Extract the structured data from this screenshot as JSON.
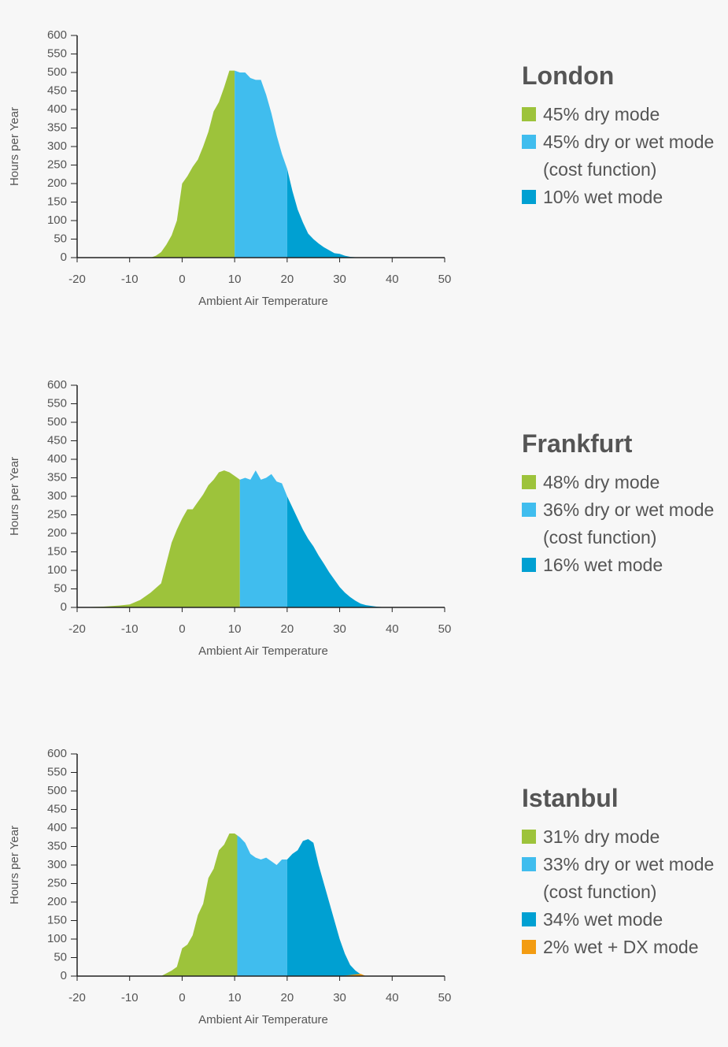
{
  "chart_data": [
    {
      "type": "area",
      "title": "London",
      "xlabel": "Ambient Air Temperature",
      "ylabel": "Hours per Year",
      "xlim": [
        -20,
        50
      ],
      "ylim": [
        0,
        600
      ],
      "xticks": [
        -20,
        -10,
        0,
        10,
        20,
        30,
        40,
        50
      ],
      "yticks": [
        0,
        50,
        100,
        150,
        200,
        250,
        300,
        350,
        400,
        450,
        500,
        550,
        600
      ],
      "series": [
        {
          "name": "45% dry mode",
          "color": "#9dc33b",
          "x": [
            -6,
            -5,
            -4,
            -3,
            -2,
            -1,
            0,
            1,
            2,
            3,
            4,
            5,
            6,
            7,
            8,
            9,
            10
          ],
          "values": [
            0,
            5,
            15,
            35,
            60,
            100,
            200,
            220,
            245,
            265,
            300,
            340,
            395,
            420,
            460,
            505,
            505
          ]
        },
        {
          "name": "45% dry or wet mode (cost function)",
          "color": "#40bdee",
          "x": [
            10,
            11,
            12,
            13,
            14,
            15,
            16,
            17,
            18,
            19,
            20
          ],
          "values": [
            505,
            500,
            500,
            485,
            480,
            480,
            440,
            390,
            330,
            280,
            240
          ]
        },
        {
          "name": "10% wet mode",
          "color": "#00a0d2",
          "x": [
            20,
            21,
            22,
            23,
            24,
            25,
            26,
            27,
            28,
            29,
            30,
            31,
            32,
            34
          ],
          "values": [
            240,
            180,
            130,
            95,
            65,
            50,
            38,
            28,
            20,
            12,
            10,
            5,
            2,
            0
          ]
        }
      ]
    },
    {
      "type": "area",
      "title": "Frankfurt",
      "xlabel": "Ambient Air Temperature",
      "ylabel": "Hours per Year",
      "xlim": [
        -20,
        50
      ],
      "ylim": [
        0,
        600
      ],
      "xticks": [
        -20,
        -10,
        0,
        10,
        20,
        30,
        40,
        50
      ],
      "yticks": [
        0,
        50,
        100,
        150,
        200,
        250,
        300,
        350,
        400,
        450,
        500,
        550,
        600
      ],
      "series": [
        {
          "name": "48% dry mode",
          "color": "#9dc33b",
          "x": [
            -20,
            -15,
            -12,
            -10,
            -8,
            -6,
            -4,
            -3,
            -2,
            -1,
            0,
            1,
            2,
            3,
            4,
            5,
            6,
            7,
            8,
            9,
            10,
            11
          ],
          "values": [
            0,
            2,
            5,
            8,
            20,
            40,
            65,
            120,
            175,
            210,
            240,
            265,
            265,
            285,
            305,
            330,
            345,
            365,
            370,
            365,
            355,
            345
          ]
        },
        {
          "name": "36% dry or wet mode (cost function)",
          "color": "#40bdee",
          "x": [
            11,
            12,
            13,
            14,
            15,
            16,
            17,
            18,
            19,
            20
          ],
          "values": [
            345,
            350,
            345,
            370,
            345,
            350,
            360,
            340,
            335,
            300
          ]
        },
        {
          "name": "16% wet mode",
          "color": "#00a0d2",
          "x": [
            20,
            21,
            22,
            23,
            24,
            25,
            26,
            27,
            28,
            29,
            30,
            31,
            32,
            33,
            34,
            35,
            37,
            39
          ],
          "values": [
            300,
            270,
            240,
            210,
            185,
            165,
            140,
            118,
            95,
            75,
            55,
            40,
            28,
            18,
            10,
            6,
            2,
            0
          ]
        }
      ]
    },
    {
      "type": "area",
      "title": "Istanbul",
      "xlabel": "Ambient Air Temperature",
      "ylabel": "Hours per Year",
      "xlim": [
        -20,
        50
      ],
      "ylim": [
        0,
        600
      ],
      "xticks": [
        -20,
        -10,
        0,
        10,
        20,
        30,
        40,
        50
      ],
      "yticks": [
        0,
        50,
        100,
        150,
        200,
        250,
        300,
        350,
        400,
        450,
        500,
        550,
        600
      ],
      "series": [
        {
          "name": "31% dry mode",
          "color": "#9dc33b",
          "x": [
            -4,
            -2,
            -1,
            0,
            1,
            2,
            3,
            4,
            5,
            6,
            7,
            8,
            9,
            10,
            10.5
          ],
          "values": [
            0,
            15,
            25,
            75,
            85,
            110,
            165,
            195,
            265,
            290,
            340,
            355,
            385,
            385,
            380
          ]
        },
        {
          "name": "33% dry or wet mode (cost function)",
          "color": "#40bdee",
          "x": [
            10.5,
            11,
            12,
            13,
            14,
            15,
            16,
            17,
            18,
            19,
            20
          ],
          "values": [
            380,
            375,
            360,
            330,
            320,
            315,
            320,
            310,
            300,
            315,
            315
          ]
        },
        {
          "name": "34% wet mode",
          "color": "#00a0d2",
          "x": [
            20,
            21,
            22,
            23,
            24,
            25,
            26,
            27,
            28,
            29,
            30,
            31,
            32,
            33,
            34,
            35
          ],
          "values": [
            315,
            330,
            340,
            365,
            370,
            360,
            300,
            250,
            200,
            150,
            100,
            60,
            30,
            15,
            5,
            0
          ]
        },
        {
          "name": "2% wet + DX mode",
          "color": "#f39c12",
          "x": [
            30,
            32,
            34,
            35
          ],
          "values": [
            0,
            3,
            6,
            0
          ]
        }
      ]
    }
  ]
}
